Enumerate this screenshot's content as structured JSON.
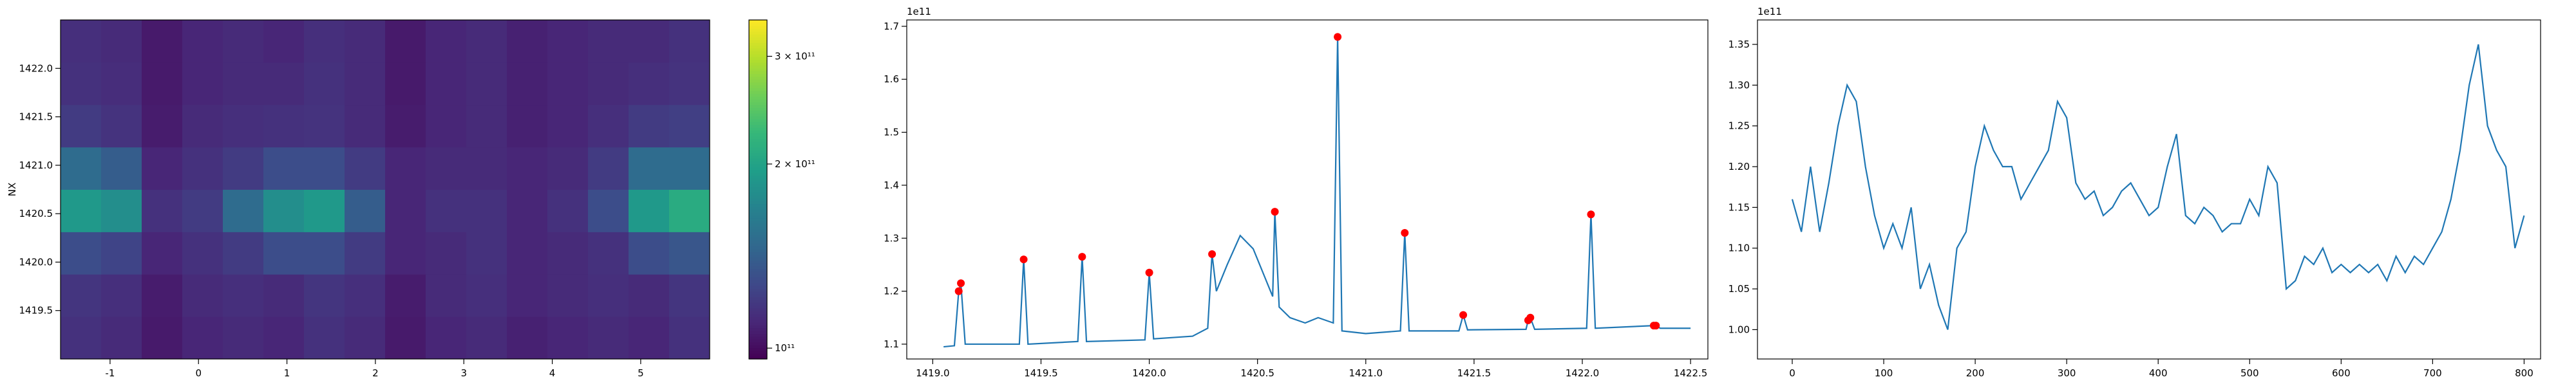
{
  "chart_data": [
    {
      "type": "heatmap",
      "ylabel": "NX",
      "xlim": [
        -1.56,
        5.78
      ],
      "ylim": [
        1419.0,
        1422.5
      ],
      "xticks": [
        -1,
        0,
        1,
        2,
        3,
        4,
        5
      ],
      "yticks": [
        1419.5,
        {
          "value": 1420.0,
          "label": "1420.0"
        },
        1420.5,
        {
          "value": 1421.0,
          "label": "1421.0"
        },
        1421.5,
        {
          "value": 1422.0,
          "label": "1422.0"
        }
      ],
      "colorscale": "viridis",
      "color_log": true,
      "clim": [
        96000000000.0,
        344000000000.0
      ],
      "cticks": [
        {
          "value": 100000000000.0,
          "label": "10¹¹"
        },
        {
          "value": 200000000000.0,
          "label": "2 × 10¹¹"
        },
        {
          "value": 300000000000.0,
          "label": "3 × 10¹¹"
        }
      ],
      "z": [
        [
          115000000000.0,
          112000000000.0,
          105000000000.0,
          110000000000.0,
          112000000000.0,
          110000000000.0,
          115000000000.0,
          112000000000.0,
          105000000000.0,
          110000000000.0,
          112000000000.0,
          108000000000.0,
          110000000000.0,
          112000000000.0,
          110000000000.0,
          115000000000.0
        ],
        [
          117000000000.0,
          114000000000.0,
          106000000000.0,
          112000000000.0,
          114000000000.0,
          112000000000.0,
          117000000000.0,
          114000000000.0,
          106000000000.0,
          112000000000.0,
          114000000000.0,
          110000000000.0,
          112000000000.0,
          114000000000.0,
          112000000000.0,
          117000000000.0
        ],
        [
          130000000000.0,
          125000000000.0,
          110000000000.0,
          115000000000.0,
          120000000000.0,
          130000000000.0,
          130000000000.0,
          120000000000.0,
          110000000000.0,
          112000000000.0,
          115000000000.0,
          110000000000.0,
          112000000000.0,
          115000000000.0,
          130000000000.0,
          135000000000.0
        ],
        [
          190000000000.0,
          180000000000.0,
          115000000000.0,
          120000000000.0,
          150000000000.0,
          180000000000.0,
          190000000000.0,
          140000000000.0,
          110000000000.0,
          115000000000.0,
          115000000000.0,
          110000000000.0,
          115000000000.0,
          130000000000.0,
          190000000000.0,
          210000000000.0
        ],
        [
          150000000000.0,
          140000000000.0,
          110000000000.0,
          115000000000.0,
          120000000000.0,
          130000000000.0,
          130000000000.0,
          120000000000.0,
          110000000000.0,
          112000000000.0,
          112000000000.0,
          110000000000.0,
          112000000000.0,
          120000000000.0,
          150000000000.0,
          150000000000.0
        ],
        [
          120000000000.0,
          116000000000.0,
          106000000000.0,
          112000000000.0,
          114000000000.0,
          115000000000.0,
          116000000000.0,
          112000000000.0,
          106000000000.0,
          110000000000.0,
          112000000000.0,
          108000000000.0,
          110000000000.0,
          114000000000.0,
          120000000000.0,
          122000000000.0
        ],
        [
          115000000000.0,
          113000000000.0,
          105000000000.0,
          110000000000.0,
          112000000000.0,
          112000000000.0,
          115000000000.0,
          112000000000.0,
          105000000000.0,
          110000000000.0,
          112000000000.0,
          108000000000.0,
          110000000000.0,
          112000000000.0,
          114000000000.0,
          116000000000.0
        ],
        [
          114000000000.0,
          112000000000.0,
          105000000000.0,
          110000000000.0,
          112000000000.0,
          110000000000.0,
          114000000000.0,
          112000000000.0,
          105000000000.0,
          110000000000.0,
          112000000000.0,
          108000000000.0,
          110000000000.0,
          112000000000.0,
          112000000000.0,
          115000000000.0
        ]
      ]
    },
    {
      "type": "line",
      "offset_label": "1e11",
      "xlim": [
        1418.88,
        1422.58
      ],
      "ylim": [
        1.072,
        1.712
      ],
      "xticks": [
        {
          "value": 1419.0,
          "label": "1419.0"
        },
        1419.5,
        {
          "value": 1420.0,
          "label": "1420.0"
        },
        1420.5,
        {
          "value": 1421.0,
          "label": "1421.0"
        },
        1421.5,
        {
          "value": 1422.0,
          "label": "1422.0"
        },
        1422.5
      ],
      "yticks": [
        1.1,
        1.2,
        1.3,
        1.4,
        1.5,
        1.6,
        1.7
      ],
      "x": [
        1419.05,
        1419.1,
        1419.12,
        1419.13,
        1419.15,
        1419.4,
        1419.42,
        1419.44,
        1419.67,
        1419.69,
        1419.71,
        1419.98,
        1420.0,
        1420.02,
        1420.2,
        1420.27,
        1420.29,
        1420.31,
        1420.36,
        1420.42,
        1420.48,
        1420.54,
        1420.57,
        1420.58,
        1420.6,
        1420.65,
        1420.72,
        1420.78,
        1420.85,
        1420.87,
        1420.89,
        1421.0,
        1421.16,
        1421.18,
        1421.2,
        1421.43,
        1421.45,
        1421.47,
        1421.74,
        1421.75,
        1421.76,
        1421.78,
        1422.02,
        1422.04,
        1422.06,
        1422.33,
        1422.34,
        1422.36,
        1422.5
      ],
      "series": [
        {
          "color": "#1f77b4",
          "values": [
            1.095,
            1.097,
            1.2,
            1.215,
            1.1,
            1.1,
            1.26,
            1.1,
            1.105,
            1.265,
            1.105,
            1.108,
            1.235,
            1.11,
            1.115,
            1.13,
            1.27,
            1.2,
            1.25,
            1.305,
            1.28,
            1.22,
            1.19,
            1.35,
            1.17,
            1.15,
            1.14,
            1.15,
            1.14,
            1.68,
            1.125,
            1.12,
            1.125,
            1.31,
            1.125,
            1.125,
            1.155,
            1.127,
            1.128,
            1.145,
            1.15,
            1.128,
            1.13,
            1.345,
            1.13,
            1.135,
            1.135,
            1.13,
            1.13
          ]
        }
      ],
      "points": {
        "color": "#ff0000",
        "x": [
          1419.12,
          1419.13,
          1419.42,
          1419.69,
          1420.0,
          1420.29,
          1420.58,
          1420.87,
          1421.18,
          1421.45,
          1421.75,
          1421.76,
          1422.04,
          1422.33,
          1422.34
        ],
        "values": [
          1.2,
          1.215,
          1.26,
          1.265,
          1.235,
          1.27,
          1.35,
          1.68,
          1.31,
          1.155,
          1.145,
          1.15,
          1.345,
          1.135,
          1.135
        ]
      }
    },
    {
      "type": "line",
      "offset_label": "1e11",
      "xlim": [
        -38,
        818
      ],
      "ylim": [
        0.964,
        1.38
      ],
      "xticks": [
        0,
        100,
        200,
        300,
        400,
        500,
        600,
        700,
        800
      ],
      "yticks": [
        {
          "value": 1.0,
          "label": "1.00"
        },
        1.05,
        {
          "value": 1.1,
          "label": "1.10"
        },
        1.15,
        {
          "value": 1.2,
          "label": "1.20"
        },
        1.25,
        {
          "value": 1.3,
          "label": "1.30"
        },
        1.35
      ],
      "x": [
        0,
        10,
        20,
        30,
        40,
        50,
        60,
        70,
        80,
        90,
        100,
        110,
        120,
        130,
        140,
        150,
        160,
        170,
        180,
        190,
        200,
        210,
        220,
        230,
        240,
        250,
        260,
        270,
        280,
        290,
        300,
        310,
        320,
        330,
        340,
        350,
        360,
        370,
        380,
        390,
        400,
        410,
        420,
        430,
        440,
        450,
        460,
        470,
        480,
        490,
        500,
        510,
        520,
        530,
        540,
        550,
        560,
        570,
        580,
        590,
        600,
        610,
        620,
        630,
        640,
        650,
        660,
        670,
        680,
        690,
        700,
        710,
        720,
        730,
        740,
        750,
        760,
        770,
        780,
        790,
        800
      ],
      "series": [
        {
          "color": "#1f77b4",
          "values": [
            1.16,
            1.12,
            1.2,
            1.12,
            1.18,
            1.25,
            1.3,
            1.28,
            1.2,
            1.14,
            1.1,
            1.13,
            1.1,
            1.15,
            1.05,
            1.08,
            1.03,
            1.0,
            1.1,
            1.12,
            1.2,
            1.25,
            1.22,
            1.2,
            1.2,
            1.16,
            1.18,
            1.2,
            1.22,
            1.28,
            1.26,
            1.18,
            1.16,
            1.17,
            1.14,
            1.15,
            1.17,
            1.18,
            1.16,
            1.14,
            1.15,
            1.2,
            1.24,
            1.14,
            1.13,
            1.15,
            1.14,
            1.12,
            1.13,
            1.13,
            1.16,
            1.14,
            1.2,
            1.18,
            1.05,
            1.06,
            1.09,
            1.08,
            1.1,
            1.07,
            1.08,
            1.07,
            1.08,
            1.07,
            1.08,
            1.06,
            1.09,
            1.07,
            1.09,
            1.08,
            1.1,
            1.12,
            1.16,
            1.22,
            1.3,
            1.35,
            1.25,
            1.22,
            1.2,
            1.1,
            1.14
          ]
        }
      ]
    }
  ]
}
